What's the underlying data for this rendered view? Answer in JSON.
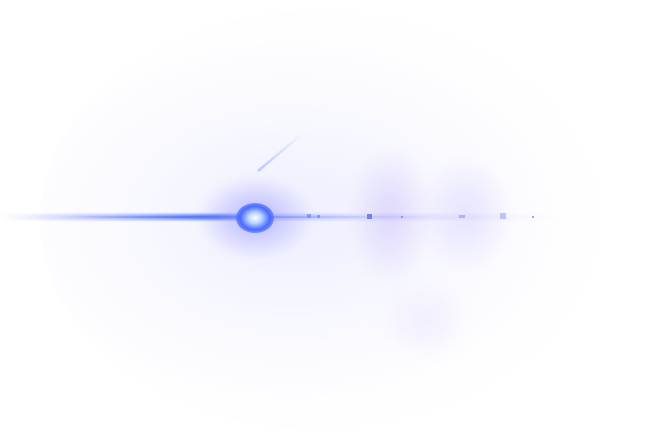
{
  "scene": {
    "description_tags": [
      "lens-flare-icon"
    ],
    "colors": {
      "background": "#ffffff",
      "flare_core": "#4b6bff",
      "flare_highlight": "#ffffff",
      "halo_tint": "#c8c8ff"
    }
  }
}
